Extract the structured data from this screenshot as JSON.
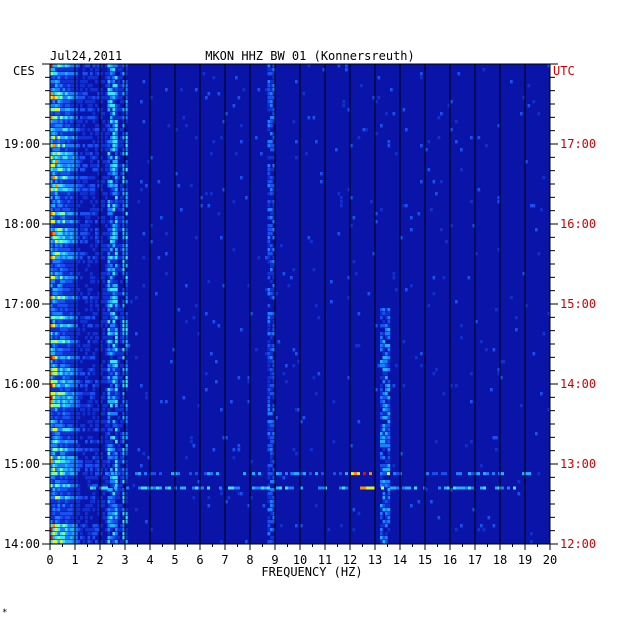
{
  "chart_data": {
    "type": "heatmap",
    "title_date": "Jul24,2011",
    "title": "MKON HHZ BW 01 (Konnersreuth)",
    "xlabel": "FREQUENCY (HZ)",
    "left_zone": "CES",
    "right_zone": "UTC",
    "x_range": [
      0,
      20
    ],
    "x_ticks": [
      "0",
      "1",
      "2",
      "3",
      "4",
      "5",
      "6",
      "7",
      "8",
      "9",
      "10",
      "11",
      "12",
      "13",
      "14",
      "15",
      "16",
      "17",
      "18",
      "19",
      "20"
    ],
    "y_range_hours": [
      14,
      20
    ],
    "left_ticks": [
      {
        "hour": 19,
        "label": "19:00"
      },
      {
        "hour": 18,
        "label": "18:00"
      },
      {
        "hour": 17,
        "label": "17:00"
      },
      {
        "hour": 16,
        "label": "16:00"
      },
      {
        "hour": 15,
        "label": "15:00"
      },
      {
        "hour": 14,
        "label": "14:00"
      }
    ],
    "right_ticks": [
      {
        "hour": 19,
        "label": "17:00"
      },
      {
        "hour": 18,
        "label": "16:00"
      },
      {
        "hour": 17,
        "label": "15:00"
      },
      {
        "hour": 16,
        "label": "14:00"
      },
      {
        "hour": 15,
        "label": "13:00"
      },
      {
        "hour": 14,
        "label": "12:00"
      }
    ],
    "background_color": "#0a14a8",
    "grid": true
  },
  "footnote": "*"
}
